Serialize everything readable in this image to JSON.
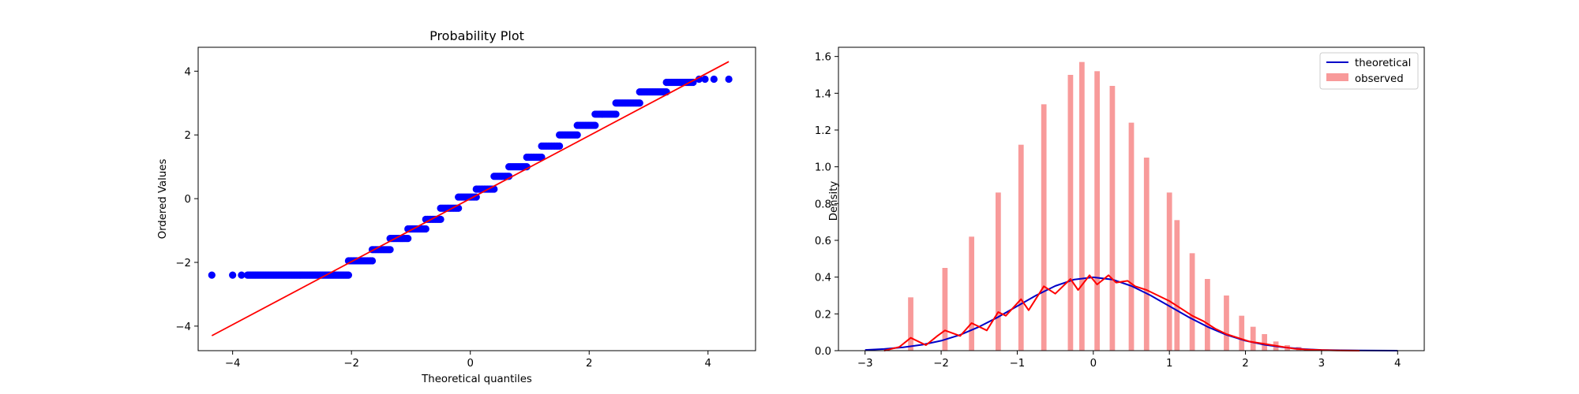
{
  "chart_data": [
    {
      "type": "scatter",
      "title": "Probability Plot",
      "xlabel": "Theoretical quantiles",
      "ylabel": "Ordered Values",
      "xlim": [
        -4.58,
        4.8
      ],
      "ylim": [
        -4.77,
        4.75
      ],
      "xticks": [
        "−4",
        "−2",
        "0",
        "2",
        "4"
      ],
      "yticks": [
        "−4",
        "−2",
        "0",
        "2",
        "4"
      ],
      "grid": false,
      "point_color": "#0000ff",
      "fit_line_color": "#ff0000",
      "fit_line": {
        "x": [
          -4.35,
          4.35
        ],
        "y": [
          -4.3,
          4.3
        ]
      },
      "clusters": [
        {
          "y": -2.4,
          "x_range": [
            -3.75,
            -2.05
          ],
          "count": 90
        },
        {
          "y": -1.95,
          "x_range": [
            -2.05,
            -1.65
          ],
          "count": 16
        },
        {
          "y": -1.6,
          "x_range": [
            -1.65,
            -1.35
          ],
          "count": 12
        },
        {
          "y": -1.25,
          "x_range": [
            -1.35,
            -1.05
          ],
          "count": 12
        },
        {
          "y": -0.95,
          "x_range": [
            -1.05,
            -0.75
          ],
          "count": 12
        },
        {
          "y": -0.65,
          "x_range": [
            -0.75,
            -0.5
          ],
          "count": 10
        },
        {
          "y": -0.3,
          "x_range": [
            -0.5,
            -0.2
          ],
          "count": 12
        },
        {
          "y": 0.05,
          "x_range": [
            -0.2,
            0.1
          ],
          "count": 12
        },
        {
          "y": 0.3,
          "x_range": [
            0.1,
            0.4
          ],
          "count": 12
        },
        {
          "y": 0.7,
          "x_range": [
            0.4,
            0.65
          ],
          "count": 10
        },
        {
          "y": 1.0,
          "x_range": [
            0.65,
            0.95
          ],
          "count": 12
        },
        {
          "y": 1.3,
          "x_range": [
            0.95,
            1.2
          ],
          "count": 10
        },
        {
          "y": 1.65,
          "x_range": [
            1.2,
            1.5
          ],
          "count": 12
        },
        {
          "y": 2.0,
          "x_range": [
            1.5,
            1.8
          ],
          "count": 12
        },
        {
          "y": 2.3,
          "x_range": [
            1.8,
            2.1
          ],
          "count": 12
        },
        {
          "y": 2.65,
          "x_range": [
            2.1,
            2.45
          ],
          "count": 14
        },
        {
          "y": 3.0,
          "x_range": [
            2.45,
            2.85
          ],
          "count": 16
        },
        {
          "y": 3.35,
          "x_range": [
            2.85,
            3.3
          ],
          "count": 18
        },
        {
          "y": 3.65,
          "x_range": [
            3.3,
            3.75
          ],
          "count": 18
        }
      ],
      "points": [
        {
          "x": -4.35,
          "y": -2.4
        },
        {
          "x": -4.0,
          "y": -2.4
        },
        {
          "x": -3.85,
          "y": -2.4
        },
        {
          "x": 3.85,
          "y": 3.75
        },
        {
          "x": 3.95,
          "y": 3.75
        },
        {
          "x": 4.1,
          "y": 3.75
        },
        {
          "x": 4.35,
          "y": 3.75
        }
      ]
    },
    {
      "type": "bar",
      "title": "",
      "xlabel": "",
      "ylabel": "Density",
      "xlim": [
        -3.35,
        4.35
      ],
      "ylim": [
        0,
        1.65
      ],
      "xticks": [
        "−3",
        "−2",
        "−1",
        "0",
        "1",
        "2",
        "3",
        "4"
      ],
      "yticks": [
        "0.0",
        "0.2",
        "0.4",
        "0.6",
        "0.8",
        "1.0",
        "1.2",
        "1.4",
        "1.6"
      ],
      "grid": false,
      "legend_position": "top-right",
      "series": [
        {
          "name": "observed",
          "kind": "bars",
          "color": "#f89a9a",
          "bar_width": 0.07,
          "x": [
            -2.4,
            -1.95,
            -1.6,
            -1.25,
            -0.95,
            -0.65,
            -0.3,
            -0.15,
            0.05,
            0.25,
            0.5,
            0.7,
            1.0,
            1.1,
            1.3,
            1.5,
            1.75,
            1.95,
            2.1,
            2.25,
            2.4,
            2.55,
            2.7,
            2.85,
            3.0
          ],
          "values": [
            0.29,
            0.45,
            0.62,
            0.86,
            1.12,
            1.34,
            1.5,
            1.57,
            1.52,
            1.44,
            1.24,
            1.05,
            0.86,
            0.71,
            0.53,
            0.39,
            0.3,
            0.19,
            0.13,
            0.09,
            0.05,
            0.03,
            0.02,
            0.01,
            0.005
          ]
        },
        {
          "name": "theoretical",
          "kind": "line",
          "color": "#0000c8",
          "x": [
            -3.0,
            -2.75,
            -2.5,
            -2.25,
            -2.0,
            -1.75,
            -1.5,
            -1.25,
            -1.0,
            -0.75,
            -0.5,
            -0.25,
            0.0,
            0.25,
            0.5,
            0.75,
            1.0,
            1.25,
            1.5,
            1.75,
            2.0,
            2.25,
            2.5,
            2.75,
            3.0,
            3.25,
            3.5,
            4.0
          ],
          "values": [
            0.004,
            0.009,
            0.018,
            0.032,
            0.054,
            0.086,
            0.13,
            0.183,
            0.242,
            0.301,
            0.352,
            0.387,
            0.399,
            0.387,
            0.352,
            0.301,
            0.242,
            0.183,
            0.13,
            0.086,
            0.054,
            0.032,
            0.018,
            0.009,
            0.004,
            0.002,
            0.001,
            0.0001
          ]
        },
        {
          "name": "",
          "kind": "line",
          "color": "#ff0000",
          "x": [
            -2.75,
            -2.55,
            -2.4,
            -2.2,
            -2.05,
            -1.95,
            -1.75,
            -1.6,
            -1.4,
            -1.25,
            -1.15,
            -0.95,
            -0.85,
            -0.65,
            -0.5,
            -0.3,
            -0.2,
            -0.05,
            0.05,
            0.2,
            0.3,
            0.45,
            0.55,
            0.7,
            0.85,
            1.0,
            1.15,
            1.3,
            1.45,
            1.6,
            1.75,
            1.9,
            2.05,
            2.2,
            2.35,
            2.5,
            2.65,
            2.8,
            3.0,
            3.2,
            3.5
          ],
          "values": [
            0.0,
            0.02,
            0.07,
            0.03,
            0.08,
            0.11,
            0.08,
            0.15,
            0.11,
            0.21,
            0.19,
            0.28,
            0.22,
            0.35,
            0.31,
            0.39,
            0.33,
            0.41,
            0.36,
            0.41,
            0.37,
            0.38,
            0.35,
            0.33,
            0.3,
            0.27,
            0.23,
            0.19,
            0.16,
            0.12,
            0.09,
            0.07,
            0.05,
            0.04,
            0.03,
            0.02,
            0.01,
            0.006,
            0.003,
            0.001,
            0.0
          ]
        }
      ]
    }
  ]
}
